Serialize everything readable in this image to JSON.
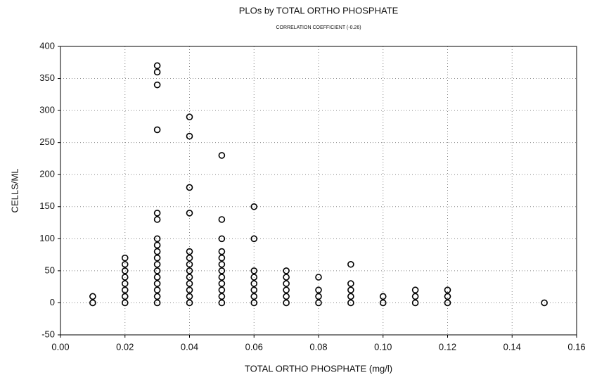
{
  "chart_data": {
    "type": "scatter",
    "title": "PLOs by TOTAL ORTHO PHOSPHATE",
    "subtitle": "CORRELATION COEFFICIENT (-0.26)",
    "x_label": "TOTAL ORTHO PHOSPHATE (mg/l)",
    "y_label": "CELLS/ML",
    "xlim": [
      0,
      0.16
    ],
    "ylim": [
      -50,
      400
    ],
    "xticks": [
      {
        "value": 0,
        "label": "0.00"
      },
      0.02,
      0.04,
      0.06,
      0.08,
      {
        "value": 0.1,
        "label": "0.10"
      },
      0.12,
      0.14,
      0.16
    ],
    "yticks": [
      -50,
      0,
      50,
      100,
      150,
      200,
      250,
      300,
      350,
      400
    ],
    "grid": true,
    "color": "#000000",
    "x": [
      0.01,
      0.01,
      0.02,
      0.02,
      0.02,
      0.02,
      0.02,
      0.02,
      0.02,
      0.02,
      0.03,
      0.03,
      0.03,
      0.03,
      0.03,
      0.03,
      0.03,
      0.03,
      0.03,
      0.03,
      0.03,
      0.03,
      0.03,
      0.03,
      0.03,
      0.03,
      0.03,
      0.04,
      0.04,
      0.04,
      0.04,
      0.04,
      0.04,
      0.04,
      0.04,
      0.04,
      0.04,
      0.04,
      0.04,
      0.04,
      0.05,
      0.05,
      0.05,
      0.05,
      0.05,
      0.05,
      0.05,
      0.05,
      0.05,
      0.05,
      0.05,
      0.05,
      0.06,
      0.06,
      0.06,
      0.06,
      0.06,
      0.06,
      0.06,
      0.06,
      0.07,
      0.07,
      0.07,
      0.07,
      0.07,
      0.07,
      0.08,
      0.08,
      0.08,
      0.08,
      0.09,
      0.09,
      0.09,
      0.09,
      0.09,
      0.1,
      0.1,
      0.11,
      0.11,
      0.11,
      0.12,
      0.12,
      0.12,
      0.15
    ],
    "y": [
      0,
      10,
      0,
      10,
      20,
      30,
      40,
      50,
      60,
      70,
      0,
      10,
      20,
      30,
      40,
      50,
      60,
      70,
      80,
      90,
      100,
      130,
      140,
      270,
      340,
      360,
      370,
      0,
      10,
      20,
      30,
      40,
      50,
      60,
      70,
      80,
      140,
      180,
      260,
      290,
      0,
      10,
      20,
      30,
      40,
      50,
      60,
      70,
      80,
      100,
      130,
      230,
      0,
      10,
      20,
      30,
      40,
      50,
      100,
      150,
      0,
      10,
      20,
      30,
      40,
      50,
      0,
      10,
      20,
      40,
      0,
      10,
      20,
      30,
      60,
      0,
      10,
      0,
      10,
      20,
      0,
      10,
      20,
      0
    ]
  }
}
